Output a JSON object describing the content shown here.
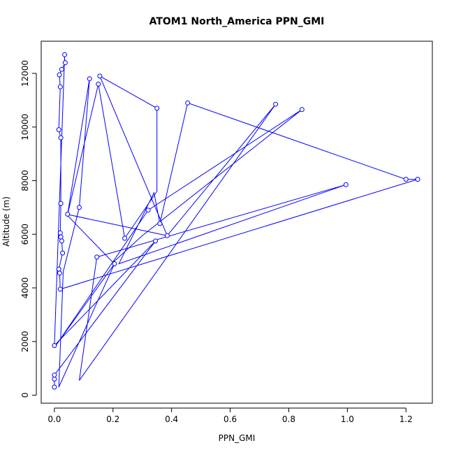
{
  "chart_data": {
    "type": "line",
    "title": "ATOM1 North_America PPN_GMI",
    "xlabel": "PPN_GMI",
    "ylabel": "Altitude (m)",
    "xlim": [
      -0.045,
      1.29
    ],
    "ylim": [
      -300,
      13200
    ],
    "xticks": [
      0.0,
      0.2,
      0.4,
      0.6,
      0.8,
      1.0,
      1.2
    ],
    "xtick_labels": [
      "0.0",
      "0.2",
      "0.4",
      "0.6",
      "0.8",
      "1.0",
      "1.2"
    ],
    "yticks": [
      0,
      2000,
      4000,
      6000,
      8000,
      10000,
      12000
    ],
    "ytick_labels": [
      "0",
      "2000",
      "4000",
      "6000",
      "8000",
      "10000",
      "12000"
    ],
    "grid": false,
    "series": [
      {
        "color": "#0000ff",
        "points": [
          {
            "x": 0.0,
            "y": 300
          },
          {
            "x": 0.0,
            "y": 600
          },
          {
            "x": 0.0,
            "y": 750
          },
          {
            "x": 0.345,
            "y": 5750
          },
          {
            "x": 0.0,
            "y": 1850
          },
          {
            "x": 0.035,
            "y": 12700
          },
          {
            "x": 0.033,
            "y": 12700
          },
          {
            "x": 0.037,
            "y": 12400
          },
          {
            "x": 0.025,
            "y": 12150
          },
          {
            "x": 0.017,
            "y": 11950
          },
          {
            "x": 0.02,
            "y": 11500
          },
          {
            "x": 0.015,
            "y": 9900
          },
          {
            "x": 0.022,
            "y": 9600
          },
          {
            "x": 0.022,
            "y": 7150
          },
          {
            "x": 0.02,
            "y": 6050
          },
          {
            "x": 0.022,
            "y": 5900
          },
          {
            "x": 0.025,
            "y": 5750
          },
          {
            "x": 0.028,
            "y": 5300
          },
          {
            "x": 0.015,
            "y": 4700
          },
          {
            "x": 0.018,
            "y": 4550
          },
          {
            "x": 0.02,
            "y": 3950
          },
          {
            "x": 1.24,
            "y": 8050
          },
          {
            "x": 1.2,
            "y": 8050
          },
          {
            "x": 0.455,
            "y": 10900
          },
          {
            "x": 0.36,
            "y": 6400
          },
          {
            "x": 0.34,
            "y": 7550
          },
          {
            "x": 0.22,
            "y": 4900
          },
          {
            "x": 0.995,
            "y": 7850
          },
          {
            "x": 0.145,
            "y": 5150
          },
          {
            "x": 0.085,
            "y": 550
          },
          {
            "x": 0.755,
            "y": 10850
          },
          {
            "x": 0.385,
            "y": 5950
          },
          {
            "x": 0.155,
            "y": 11900
          },
          {
            "x": 0.35,
            "y": 10700
          },
          {
            "x": 0.35,
            "y": 7600
          },
          {
            "x": 0.24,
            "y": 5850
          },
          {
            "x": 0.15,
            "y": 11600
          },
          {
            "x": 0.045,
            "y": 6750
          },
          {
            "x": 0.12,
            "y": 11800
          },
          {
            "x": 0.085,
            "y": 7000
          },
          {
            "x": 0.03,
            "y": 4600
          },
          {
            "x": 0.015,
            "y": 300
          },
          {
            "x": 0.205,
            "y": 4900
          },
          {
            "x": 0.005,
            "y": 1850
          },
          {
            "x": 0.32,
            "y": 6900
          },
          {
            "x": 0.845,
            "y": 10650
          },
          {
            "x": 0.3,
            "y": 5950
          },
          {
            "x": 0.2,
            "y": 4950
          },
          {
            "x": 0.04,
            "y": 6750
          },
          {
            "x": 0.385,
            "y": 5950
          }
        ],
        "markers": [
          {
            "x": 0.0,
            "y": 300
          },
          {
            "x": 0.0,
            "y": 600
          },
          {
            "x": 0.0,
            "y": 750
          },
          {
            "x": 0.0,
            "y": 1850
          },
          {
            "x": 0.035,
            "y": 12700
          },
          {
            "x": 0.037,
            "y": 12400
          },
          {
            "x": 0.025,
            "y": 12150
          },
          {
            "x": 0.017,
            "y": 11950
          },
          {
            "x": 0.02,
            "y": 11500
          },
          {
            "x": 0.015,
            "y": 9900
          },
          {
            "x": 0.022,
            "y": 9600
          },
          {
            "x": 0.022,
            "y": 7150
          },
          {
            "x": 0.02,
            "y": 6050
          },
          {
            "x": 0.022,
            "y": 5900
          },
          {
            "x": 0.025,
            "y": 5750
          },
          {
            "x": 0.028,
            "y": 5300
          },
          {
            "x": 0.015,
            "y": 4700
          },
          {
            "x": 0.018,
            "y": 4550
          },
          {
            "x": 0.02,
            "y": 3950
          },
          {
            "x": 1.24,
            "y": 8050
          },
          {
            "x": 1.2,
            "y": 8050
          },
          {
            "x": 0.455,
            "y": 10900
          },
          {
            "x": 0.36,
            "y": 6400
          },
          {
            "x": 0.345,
            "y": 5750
          },
          {
            "x": 0.995,
            "y": 7850
          },
          {
            "x": 0.145,
            "y": 5150
          },
          {
            "x": 0.755,
            "y": 10850
          },
          {
            "x": 0.385,
            "y": 5950
          },
          {
            "x": 0.155,
            "y": 11900
          },
          {
            "x": 0.35,
            "y": 10700
          },
          {
            "x": 0.24,
            "y": 5850
          },
          {
            "x": 0.15,
            "y": 11600
          },
          {
            "x": 0.045,
            "y": 6750
          },
          {
            "x": 0.12,
            "y": 11800
          },
          {
            "x": 0.085,
            "y": 7000
          },
          {
            "x": 0.205,
            "y": 4900
          },
          {
            "x": 0.32,
            "y": 6900
          },
          {
            "x": 0.845,
            "y": 10650
          }
        ]
      }
    ]
  }
}
